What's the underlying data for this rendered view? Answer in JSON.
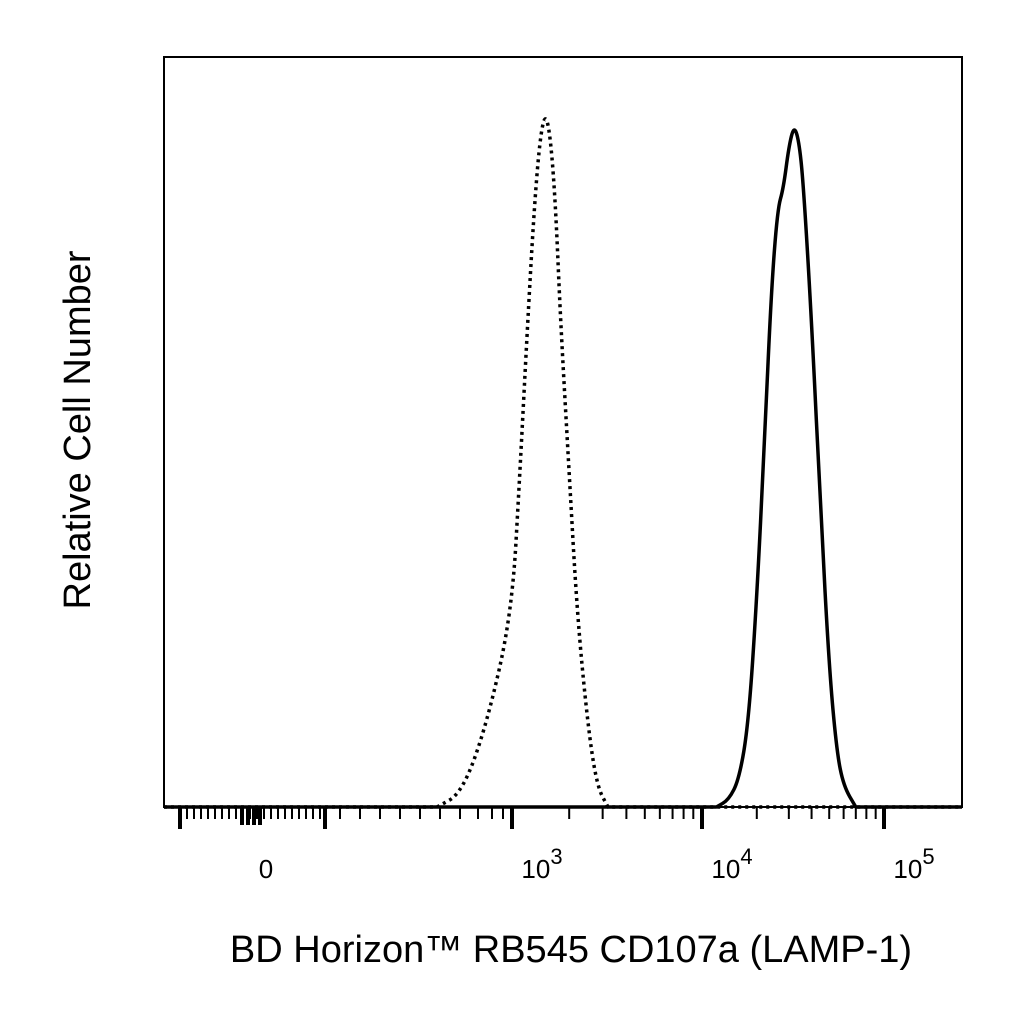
{
  "chart_data": {
    "type": "line",
    "title": "",
    "xlabel": "BD Horizon™ RB545 CD107a (LAMP-1)",
    "ylabel": "Relative Cell Number",
    "x_scale": "biexponential",
    "grid": false,
    "legend": "none",
    "x_ticks": [
      {
        "value": 0,
        "label": "0"
      },
      {
        "value": 1000,
        "base": "10",
        "exp": "3"
      },
      {
        "value": 10000,
        "base": "10",
        "exp": "4"
      },
      {
        "value": 100000,
        "base": "10",
        "exp": "5"
      }
    ],
    "ylim": [
      0,
      100
    ],
    "series": [
      {
        "style": "dotted",
        "x": [
          700,
          800,
          900,
          1000,
          1100,
          1200,
          1300,
          1400,
          1500,
          1600,
          1700,
          1800,
          2000,
          2200,
          2500,
          2800,
          3200
        ],
        "y": [
          0,
          2,
          12,
          28,
          48,
          68,
          85,
          96,
          100,
          96,
          86,
          70,
          48,
          28,
          12,
          3,
          0
        ]
      },
      {
        "style": "solid",
        "x": [
          12000,
          14000,
          16000,
          18000,
          20000,
          22000,
          24000,
          26000,
          28000,
          30000,
          32000,
          34000,
          36000,
          40000,
          45000,
          50000,
          55000,
          60000,
          70000
        ],
        "y": [
          0,
          1,
          4,
          12,
          30,
          52,
          74,
          86,
          89,
          95,
          98,
          96,
          90,
          70,
          42,
          20,
          8,
          3,
          0
        ]
      }
    ]
  }
}
